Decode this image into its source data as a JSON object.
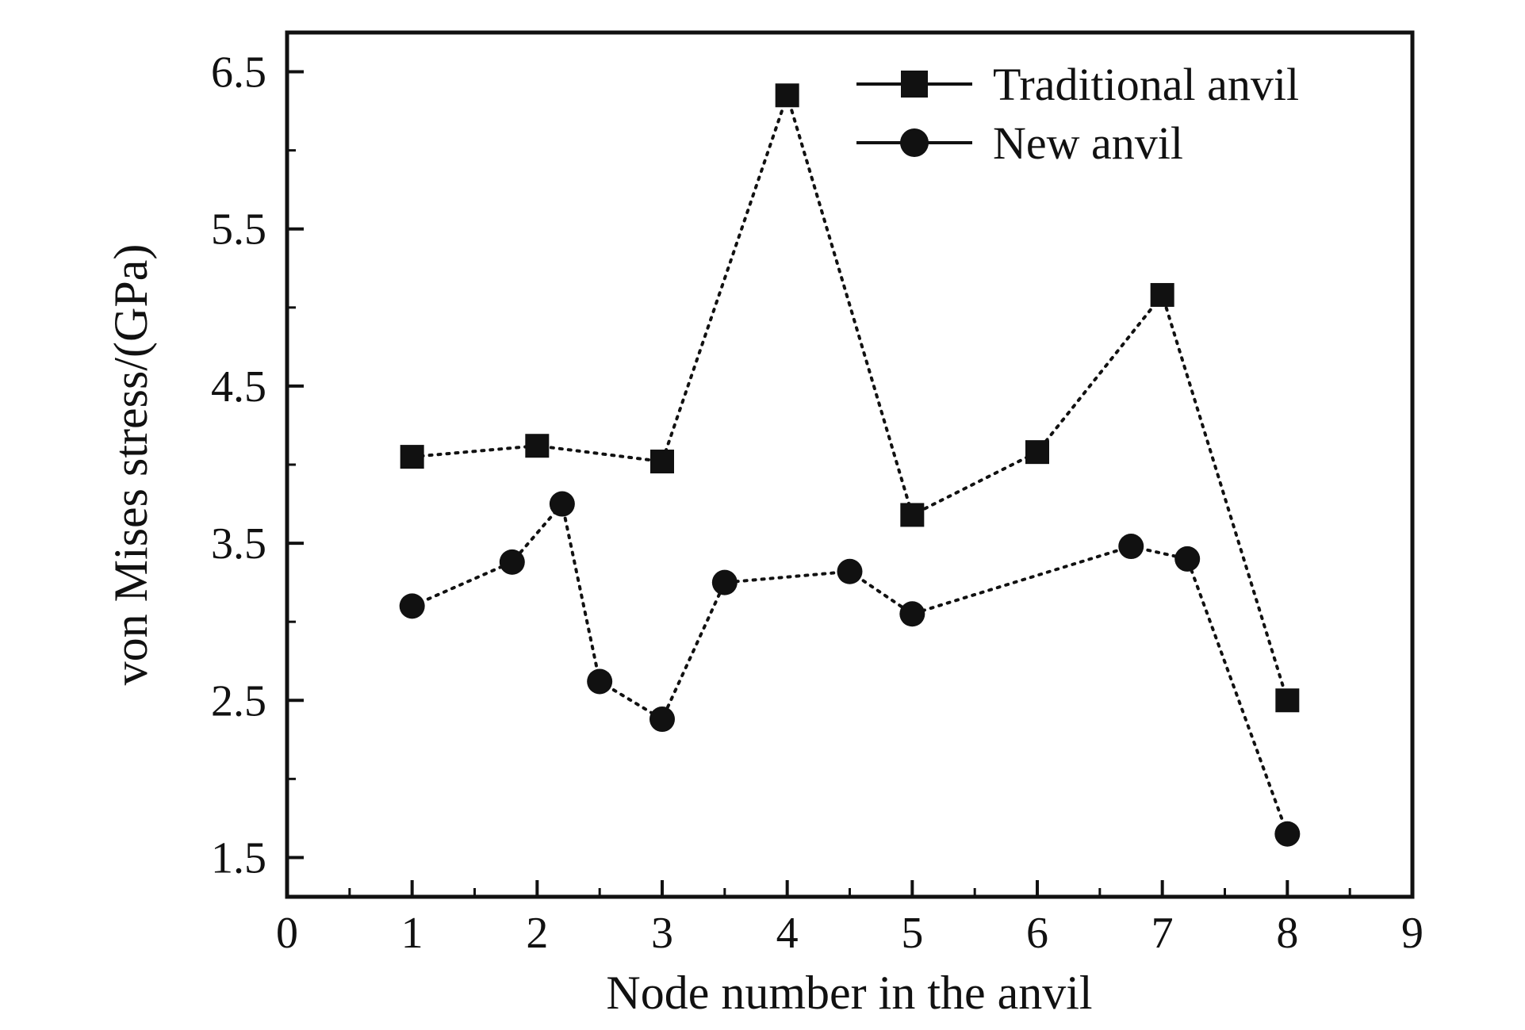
{
  "figure": {
    "background": "#ffffff",
    "ink_color": "#111111"
  },
  "chart_data": {
    "type": "line",
    "title": "",
    "xlabel": "Node number in the anvil",
    "ylabel": "von Mises stress/(GPa)",
    "xlim": [
      0,
      9
    ],
    "ylim": [
      1.25,
      6.75
    ],
    "x_ticks": [
      0,
      1,
      2,
      3,
      4,
      5,
      6,
      7,
      8,
      9
    ],
    "y_ticks": [
      1.5,
      2.5,
      3.5,
      4.5,
      5.5,
      6.5
    ],
    "x_minor_step": 0.5,
    "y_minor_step": 0.5,
    "grid": false,
    "legend_position": "top-center-inside",
    "legend": [
      "Traditional anvil",
      "New anvil"
    ],
    "series": [
      {
        "name": "Traditional anvil",
        "marker": "square",
        "color": "#111111",
        "x": [
          1,
          2,
          3,
          4,
          5,
          6,
          7,
          8
        ],
        "y": [
          4.05,
          4.12,
          4.02,
          6.35,
          3.68,
          4.08,
          5.08,
          2.5
        ]
      },
      {
        "name": "New anvil",
        "marker": "circle",
        "color": "#111111",
        "x": [
          1,
          1.8,
          2.2,
          2.5,
          3,
          3.5,
          4.5,
          5,
          6.75,
          7.2,
          8
        ],
        "y": [
          3.1,
          3.38,
          3.75,
          2.62,
          2.38,
          3.25,
          3.32,
          3.05,
          3.48,
          3.4,
          1.65
        ]
      }
    ]
  }
}
